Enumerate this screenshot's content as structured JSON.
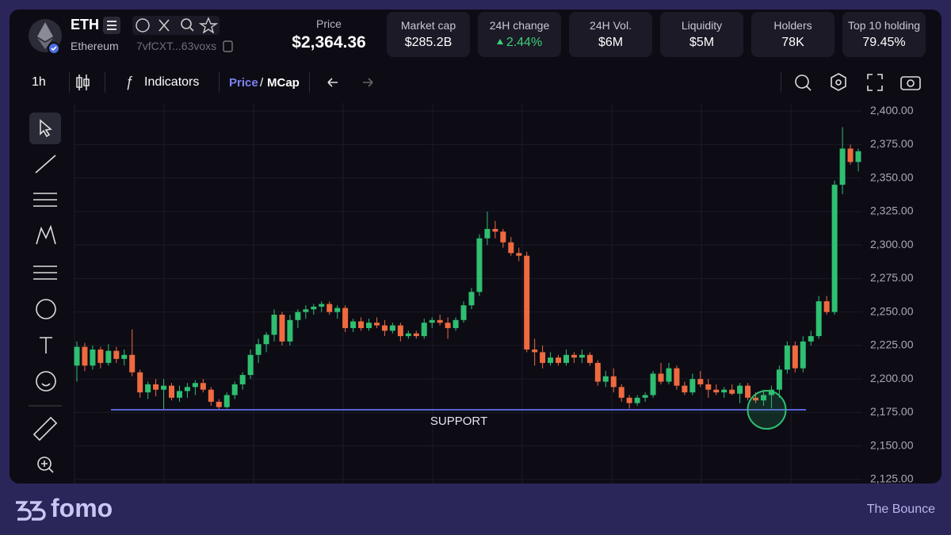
{
  "header": {
    "symbol": "ETH",
    "name": "Ethereum",
    "address": "7vfCXT...63voxs",
    "price_label": "Price",
    "price": "$2,364.36",
    "stats": [
      {
        "label": "Market cap",
        "value": "$285.2B"
      },
      {
        "label": "24H change",
        "value": "2.44%",
        "direction": "up",
        "color": "#3ccf7a"
      },
      {
        "label": "24H Vol.",
        "value": "$6M"
      },
      {
        "label": "Liquidity",
        "value": "$5M"
      },
      {
        "label": "Holders",
        "value": "78K"
      },
      {
        "label": "Top 10 holding",
        "value": "79.45%"
      }
    ]
  },
  "toolbar": {
    "interval": "1h",
    "indicators": "Indicators",
    "price": "Price",
    "separator": "/",
    "mcap": "MCap"
  },
  "chart_data": {
    "type": "candlestick",
    "open": [
      2210,
      2224,
      2210,
      2222,
      2212,
      2221,
      2215,
      2218,
      2205,
      2190,
      2196,
      2192,
      2195,
      2186,
      2191,
      2194,
      2197,
      2192,
      2183,
      2179,
      2188,
      2196,
      2203,
      2218,
      2226,
      2233,
      2248,
      2228,
      2244,
      2250,
      2252,
      2254,
      2256,
      2250,
      2253,
      2238,
      2243,
      2238,
      2242,
      2240,
      2236,
      2240,
      2232,
      2234,
      2232,
      2242,
      2244,
      2242,
      2238,
      2244,
      2255,
      2265,
      2305,
      2312,
      2310,
      2302,
      2294,
      2292,
      2222,
      2220,
      2212,
      2216,
      2212,
      2218,
      2216,
      2218,
      2212,
      2198,
      2202,
      2194,
      2186,
      2182,
      2186,
      2188,
      2204,
      2198,
      2208,
      2195,
      2190,
      2200,
      2196,
      2192,
      2190,
      2192,
      2189,
      2195,
      2186,
      2184,
      2188,
      2192,
      2207,
      2225,
      2208,
      2228,
      2232,
      2258,
      2250,
      2345,
      2372,
      2362
    ],
    "high": [
      2228,
      2227,
      2225,
      2224,
      2226,
      2224,
      2222,
      2237,
      2207,
      2198,
      2200,
      2200,
      2197,
      2195,
      2197,
      2199,
      2200,
      2194,
      2185,
      2190,
      2198,
      2205,
      2222,
      2230,
      2235,
      2252,
      2250,
      2248,
      2252,
      2255,
      2256,
      2258,
      2258,
      2255,
      2255,
      2245,
      2246,
      2245,
      2246,
      2244,
      2242,
      2242,
      2236,
      2236,
      2245,
      2246,
      2248,
      2246,
      2246,
      2258,
      2268,
      2308,
      2325,
      2318,
      2312,
      2306,
      2298,
      2295,
      2230,
      2225,
      2220,
      2218,
      2222,
      2220,
      2222,
      2220,
      2214,
      2206,
      2208,
      2196,
      2188,
      2188,
      2190,
      2206,
      2212,
      2212,
      2210,
      2198,
      2204,
      2206,
      2200,
      2196,
      2194,
      2196,
      2197,
      2197,
      2190,
      2192,
      2195,
      2210,
      2228,
      2228,
      2232,
      2236,
      2262,
      2262,
      2348,
      2388,
      2375,
      2372
    ],
    "low": [
      2198,
      2206,
      2207,
      2208,
      2210,
      2212,
      2210,
      2202,
      2186,
      2185,
      2187,
      2177,
      2184,
      2183,
      2186,
      2188,
      2190,
      2180,
      2177,
      2178,
      2185,
      2192,
      2200,
      2212,
      2220,
      2228,
      2225,
      2225,
      2238,
      2245,
      2248,
      2250,
      2248,
      2245,
      2235,
      2235,
      2236,
      2236,
      2238,
      2232,
      2234,
      2228,
      2230,
      2230,
      2230,
      2238,
      2240,
      2230,
      2236,
      2242,
      2252,
      2262,
      2300,
      2305,
      2298,
      2292,
      2288,
      2220,
      2210,
      2208,
      2210,
      2210,
      2210,
      2212,
      2212,
      2210,
      2195,
      2194,
      2190,
      2183,
      2178,
      2180,
      2183,
      2186,
      2196,
      2196,
      2192,
      2188,
      2188,
      2194,
      2186,
      2188,
      2186,
      2188,
      2182,
      2184,
      2182,
      2180,
      2178,
      2186,
      2204,
      2205,
      2205,
      2225,
      2230,
      2248,
      2248,
      2338,
      2360,
      2355
    ],
    "close": [
      2224,
      2210,
      2222,
      2212,
      2221,
      2215,
      2218,
      2205,
      2190,
      2196,
      2192,
      2195,
      2186,
      2191,
      2194,
      2197,
      2192,
      2183,
      2179,
      2188,
      2196,
      2203,
      2218,
      2226,
      2233,
      2248,
      2228,
      2244,
      2250,
      2252,
      2254,
      2256,
      2250,
      2253,
      2238,
      2243,
      2238,
      2242,
      2240,
      2236,
      2240,
      2232,
      2234,
      2232,
      2242,
      2244,
      2242,
      2238,
      2244,
      2255,
      2265,
      2305,
      2312,
      2310,
      2302,
      2294,
      2292,
      2222,
      2220,
      2212,
      2216,
      2212,
      2218,
      2216,
      2218,
      2212,
      2198,
      2202,
      2194,
      2186,
      2182,
      2186,
      2188,
      2204,
      2198,
      2208,
      2195,
      2190,
      2200,
      2196,
      2192,
      2190,
      2192,
      2189,
      2195,
      2186,
      2184,
      2188,
      2192,
      2207,
      2225,
      2208,
      2228,
      2232,
      2258,
      2250,
      2345,
      2372,
      2362,
      2370
    ],
    "up_color": "#2fbf71",
    "down_color": "#ef6a3f",
    "ylim": [
      2122,
      2406
    ],
    "yticks": [
      {
        "value": 2125,
        "label": "2,125.00"
      },
      {
        "value": 2150,
        "label": "2,150.00"
      },
      {
        "value": 2175,
        "label": "2,175.00"
      },
      {
        "value": 2200,
        "label": "2,200.00"
      },
      {
        "value": 2225,
        "label": "2,225.00"
      },
      {
        "value": 2250,
        "label": "2,250.00"
      },
      {
        "value": 2275,
        "label": "2,275.00"
      },
      {
        "value": 2300,
        "label": "2,300.00"
      },
      {
        "value": 2325,
        "label": "2,325.00"
      },
      {
        "value": 2350,
        "label": "2,350.00"
      },
      {
        "value": 2375,
        "label": "2,375.00"
      },
      {
        "value": 2400,
        "label": "2,400.00"
      }
    ],
    "grid": true,
    "support": {
      "value": 2177,
      "label": "SUPPORT",
      "color": "#5a62d6"
    }
  },
  "footer": {
    "brand": "fomo",
    "caption": "The Bounce"
  }
}
